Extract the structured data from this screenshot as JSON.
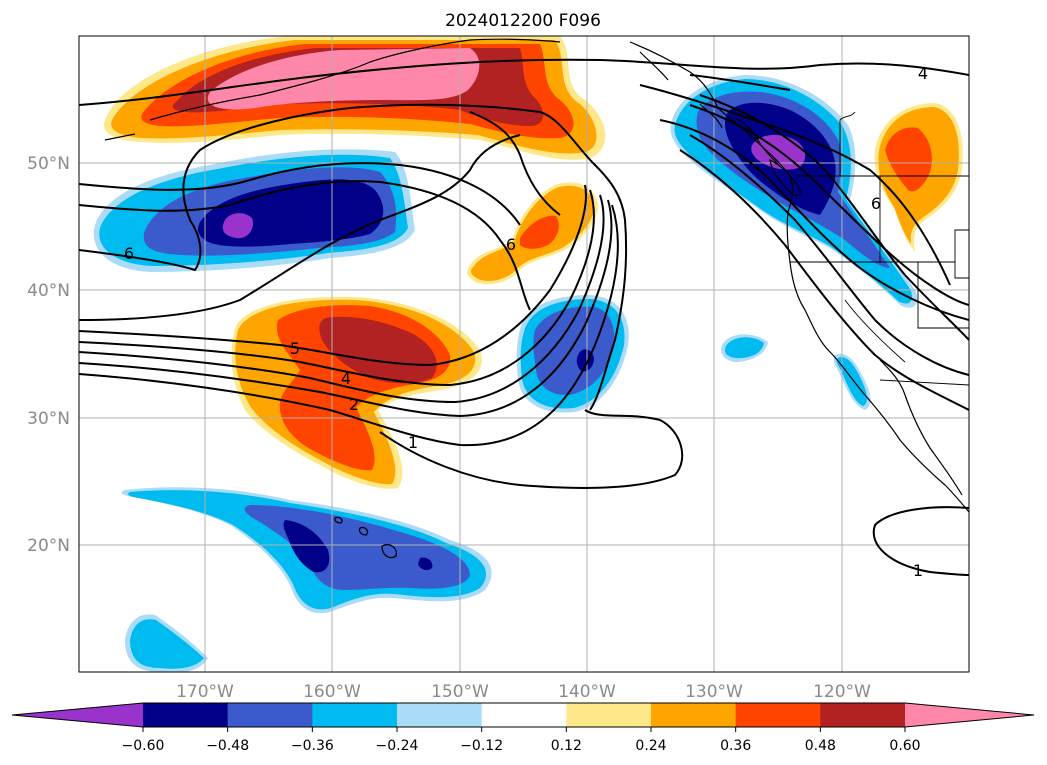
{
  "title": "2024012200 F096",
  "lat_labels": [
    "50°N",
    "40°N",
    "30°N",
    "20°N"
  ],
  "lon_labels": [
    "170°W",
    "160°W",
    "150°W",
    "140°W",
    "130°W",
    "120°W"
  ],
  "colorbar": {
    "tick_labels": [
      "−0.60",
      "−0.48",
      "−0.36",
      "−0.24",
      "−0.12",
      "0.12",
      "0.24",
      "0.36",
      "0.48",
      "0.60"
    ],
    "colors": [
      "#9933cc",
      "#000088",
      "#3b5bcc",
      "#00bbf0",
      "#aadcf8",
      "#ffffff",
      "#ffe88a",
      "#ffa500",
      "#ff4400",
      "#b22222",
      "#ff88aa"
    ],
    "extend": "both"
  },
  "contour_labels": [
    {
      "text": "4"
    },
    {
      "text": "6"
    },
    {
      "text": "6"
    },
    {
      "text": "6"
    },
    {
      "text": "5"
    },
    {
      "text": "4"
    },
    {
      "text": "2"
    },
    {
      "text": "1"
    },
    {
      "text": "1"
    }
  ]
}
